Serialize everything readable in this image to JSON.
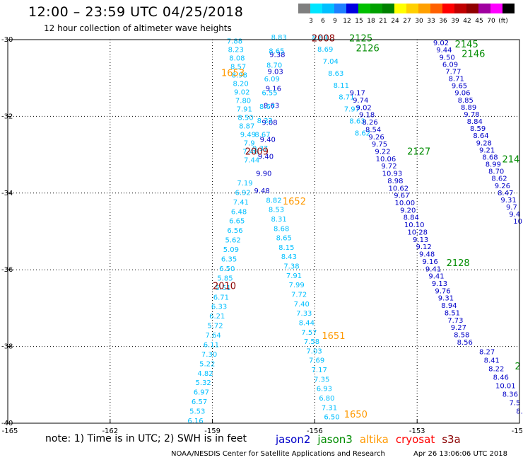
{
  "title": "12:00 – 23:59 UTC 04/25/2018",
  "subtitle": "12 hour collection of altimeter wave heights",
  "colorbar": {
    "colors": [
      "#7f7f7f",
      "#00e5ff",
      "#00bfff",
      "#1e7fff",
      "#0000e0",
      "#00c000",
      "#00a000",
      "#008000",
      "#ffff00",
      "#ffd000",
      "#ffa000",
      "#ff6000",
      "#ff0000",
      "#c00000",
      "#900000",
      "#a000a0",
      "#ff00ff",
      "#000000"
    ],
    "labels": [
      "3",
      "6",
      "9",
      "12",
      "15",
      "18",
      "21",
      "24",
      "27",
      "30",
      "33",
      "36",
      "39",
      "42",
      "45",
      "70",
      "(ft)"
    ]
  },
  "axes": {
    "lon_ticks": [
      "-165",
      "-162",
      "-159",
      "-156",
      "-153",
      "-150"
    ],
    "lat_ticks": [
      "-30",
      "-32",
      "-34",
      "-36",
      "-38",
      "-40"
    ]
  },
  "satellite_colors": {
    "jason2": "#0000c8",
    "jason3": "#008c00",
    "altika": "#ff9900",
    "cryosat": "#ff0000",
    "s3a": "#8b0000"
  },
  "time_labels": [
    {
      "t": "2008",
      "sat": "s3a",
      "lon": -155.75,
      "lat": -30.05
    },
    {
      "t": "2125",
      "sat": "jason3",
      "lon": -154.65,
      "lat": -30.05
    },
    {
      "t": "2126",
      "sat": "jason3",
      "lon": -154.45,
      "lat": -30.3
    },
    {
      "t": "2145",
      "sat": "jason3",
      "lon": -151.55,
      "lat": -30.2
    },
    {
      "t": "2146",
      "sat": "jason3",
      "lon": -151.35,
      "lat": -30.45
    },
    {
      "t": "1653",
      "sat": "altika",
      "lon": -158.4,
      "lat": -30.95
    },
    {
      "t": "2009",
      "sat": "s3a",
      "lon": -157.7,
      "lat": -33.0
    },
    {
      "t": "2127",
      "sat": "jason3",
      "lon": -152.95,
      "lat": -33.0
    },
    {
      "t": "214",
      "sat": "jason3",
      "lon": -150.25,
      "lat": -33.2
    },
    {
      "t": "1652",
      "sat": "altika",
      "lon": -156.6,
      "lat": -34.3
    },
    {
      "t": "2128",
      "sat": "jason3",
      "lon": -151.8,
      "lat": -35.9
    },
    {
      "t": "2010",
      "sat": "s3a",
      "lon": -158.65,
      "lat": -36.5
    },
    {
      "t": "1651",
      "sat": "altika",
      "lon": -155.45,
      "lat": -37.8
    },
    {
      "t": "2",
      "sat": "jason3",
      "lon": -150.05,
      "lat": -38.6
    },
    {
      "t": "1650",
      "sat": "altika",
      "lon": -154.8,
      "lat": -39.85
    }
  ],
  "tracks": [
    {
      "id": "s3a-a",
      "sat": "s3a",
      "color": "#00bfff",
      "lon0": -158.35,
      "lat0": -30.1,
      "lon1": -157.85,
      "lat1": -33.2,
      "values": [
        "7.88",
        "8.23",
        "8.08",
        "8.57",
        "8.98",
        "8.20",
        "9.02",
        "7.80",
        "7.91",
        "8.50",
        "8.87",
        "9.49",
        "7.9",
        "7.46",
        "7.44"
      ]
    },
    {
      "id": "s3a-b",
      "sat": "s3a",
      "color": "#00bfff",
      "lon0": -158.05,
      "lat0": -33.8,
      "lon1": -159.5,
      "lat1": -40.0,
      "values": [
        "7.19",
        "6.92",
        "7.41",
        "6.48",
        "6.65",
        "6.56",
        "5.62",
        "5.09",
        "6.35",
        "6.50",
        "5.85",
        "5.51",
        "6.71",
        "6.33",
        "6.21",
        "5.72",
        "7.64",
        "6.11",
        "7.30",
        "5.22",
        "4.82",
        "5.32",
        "6.97",
        "6.57",
        "5.53",
        "6.16"
      ]
    },
    {
      "id": "jason2-a",
      "sat": "jason2",
      "color": "#0000c8",
      "lon0": -157.1,
      "lat0": -30.45,
      "lon1": -157.55,
      "lat1": -34.0,
      "values": [
        "9.38",
        "9.03",
        "9.16",
        "8.63",
        "9.08",
        "9.40",
        "9.40",
        "9.90",
        "9.48"
      ]
    },
    {
      "id": "altika-a",
      "sat": "altika",
      "color": "#00bfff",
      "lon0": -157.05,
      "lat0": -30.0,
      "lon1": -157.6,
      "lat1": -32.9,
      "values": [
        "8.83",
        "8.65",
        "8.70",
        "6.09",
        "6.55",
        "8.67",
        "8.32",
        "8.67",
        "9.37"
      ]
    },
    {
      "id": "altika-b",
      "sat": "altika",
      "color": "#00bfff",
      "lon0": -157.2,
      "lat0": -34.25,
      "lon1": -155.5,
      "lat1": -39.9,
      "values": [
        "8.82",
        "8.53",
        "8.31",
        "8.68",
        "8.65",
        "8.15",
        "8.43",
        "7.38",
        "7.91",
        "7.99",
        "7.72",
        "7.40",
        "7.33",
        "8.44",
        "7.57",
        "7.58",
        "7.03",
        "7.69",
        "7.17",
        "7.35",
        "6.93",
        "6.80",
        "7.31",
        "6.50"
      ]
    },
    {
      "id": "jason3-a",
      "sat": "jason3",
      "color": "#00bfff",
      "lon0": -155.85,
      "lat0": -30.0,
      "lon1": -154.6,
      "lat1": -32.5,
      "values": [
        "8.84",
        "8.69",
        "7.04",
        "8.63",
        "8.11",
        "8.71",
        "7.97",
        "8.63",
        "8.62"
      ]
    },
    {
      "id": "jason3-b",
      "sat": "jason2",
      "color": "#0000c8",
      "lon0": -154.75,
      "lat0": -31.45,
      "lon1": -151.6,
      "lat1": -37.95,
      "values": [
        "9.17",
        "9.74",
        "9.02",
        "9.18",
        "8.26",
        "8.54",
        "9.26",
        "9.75",
        "9.22",
        "10.06",
        "9.72",
        "10.93",
        "8.98",
        "10.62",
        "9.67",
        "10.00",
        "9.20",
        "8.84",
        "10.10",
        "10.28",
        "9.13",
        "9.12",
        "9.48",
        "9.16",
        "9.41",
        "9.41",
        "9.13",
        "9.76",
        "9.31",
        "8.94",
        "8.51",
        "7.73",
        "9.27",
        "8.58",
        "8.56"
      ]
    },
    {
      "id": "jason3-c",
      "sat": "jason2",
      "color": "#0000c8",
      "lon0": -152.3,
      "lat0": -30.15,
      "lon1": -150.05,
      "lat1": -34.8,
      "values": [
        "9.02",
        "9.44",
        "9.50",
        "6.09",
        "7.77",
        "8.71",
        "9.65",
        "9.06",
        "8.85",
        "8.89",
        "9.78",
        "8.84",
        "8.59",
        "8.64",
        "9.28",
        "9.21",
        "8.68",
        "8.99",
        "8.70",
        "8.62",
        "9.26",
        "8.47",
        "9.31",
        "9.7",
        "9.4",
        "10"
      ]
    },
    {
      "id": "jason3-d",
      "sat": "jason2",
      "color": "#0000c8",
      "lon0": -150.95,
      "lat0": -38.2,
      "lon1": -150.0,
      "lat1": -39.75,
      "values": [
        "8.27",
        "8.41",
        "8.22",
        "8.46",
        "10.01",
        "8.36",
        "7.5",
        "8."
      ]
    }
  ],
  "note": {
    "prefix": "note:  1) Time is in UTC;  2) SWH is in feet",
    "legend": [
      {
        "label": "jason2",
        "sat": "jason2"
      },
      {
        "label": "jason3",
        "sat": "jason3"
      },
      {
        "label": "altika",
        "sat": "altika"
      },
      {
        "label": "cryosat",
        "sat": "cryosat"
      },
      {
        "label": "s3a",
        "sat": "s3a"
      }
    ]
  },
  "footer": {
    "center": "NOAA/NESDIS Center for Satellite Applications and Research",
    "date": "Apr 26 13:06:06 UTC 2018"
  }
}
